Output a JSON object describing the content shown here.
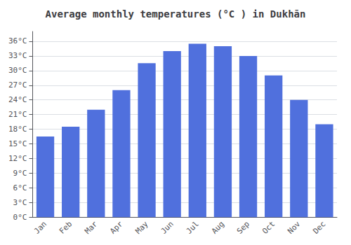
{
  "chart_data": {
    "type": "bar",
    "title": "Average monthly temperatures (°C ) in Dukhān",
    "categories": [
      "Jan",
      "Feb",
      "Mar",
      "Apr",
      "May",
      "Jun",
      "Jul",
      "Aug",
      "Sep",
      "Oct",
      "Nov",
      "Dec"
    ],
    "values": [
      16.5,
      18.5,
      22.0,
      26.0,
      31.5,
      34.0,
      35.5,
      35.0,
      33.0,
      29.0,
      24.0,
      19.0
    ],
    "ylim": [
      0,
      38
    ],
    "yticks": [
      {
        "value": 0,
        "label": "0°C"
      },
      {
        "value": 3,
        "label": "3°C"
      },
      {
        "value": 6,
        "label": "6°C"
      },
      {
        "value": 9,
        "label": "9°C"
      },
      {
        "value": 12,
        "label": "12°C"
      },
      {
        "value": 15,
        "label": "15°C"
      },
      {
        "value": 18,
        "label": "18°C"
      },
      {
        "value": 21,
        "label": "21°C"
      },
      {
        "value": 24,
        "label": "24°C"
      },
      {
        "value": 27,
        "label": "27°C"
      },
      {
        "value": 30,
        "label": "30°C"
      },
      {
        "value": 33,
        "label": "33°C"
      },
      {
        "value": 36,
        "label": "36°C"
      }
    ],
    "grid": true
  }
}
